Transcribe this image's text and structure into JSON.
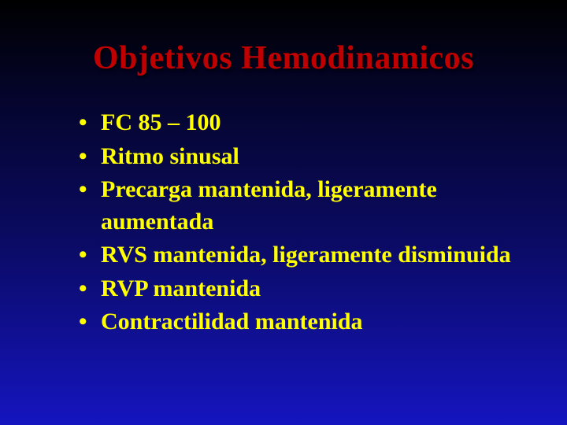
{
  "slide": {
    "title": "Objetivos Hemodinamicos",
    "title_color": "#c00000",
    "text_color": "#ffff00",
    "background_gradient": {
      "from": "#000000",
      "to": "#1515c0"
    },
    "title_fontsize": 42,
    "bullet_fontsize": 30,
    "font_family": "Times New Roman",
    "bullets": [
      "FC  85 – 100",
      "Ritmo sinusal",
      "Precarga mantenida, ligeramente aumentada",
      "RVS mantenida, ligeramente disminuida",
      "RVP mantenida",
      "Contractilidad mantenida"
    ]
  }
}
